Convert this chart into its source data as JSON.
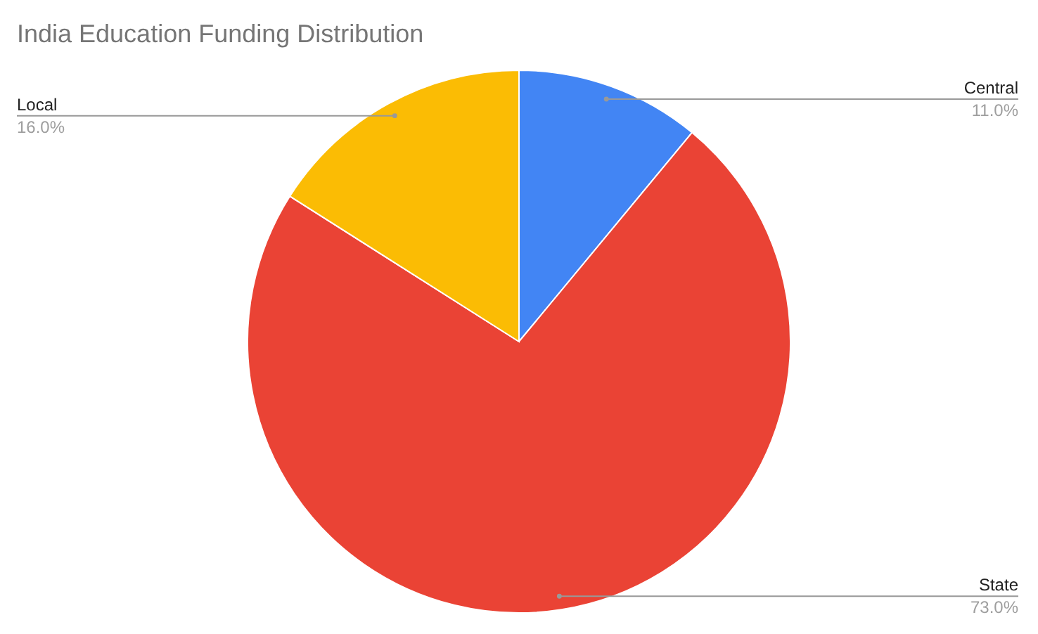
{
  "chart_data": {
    "type": "pie",
    "title": "India Education Funding Distribution",
    "categories": [
      "Central",
      "State",
      "Local"
    ],
    "values": [
      11,
      73,
      16
    ],
    "value_labels": [
      "11.0%",
      "73.0%",
      "16.0%"
    ],
    "colors": [
      "#4285f4",
      "#ea4335",
      "#fbbc04"
    ]
  }
}
